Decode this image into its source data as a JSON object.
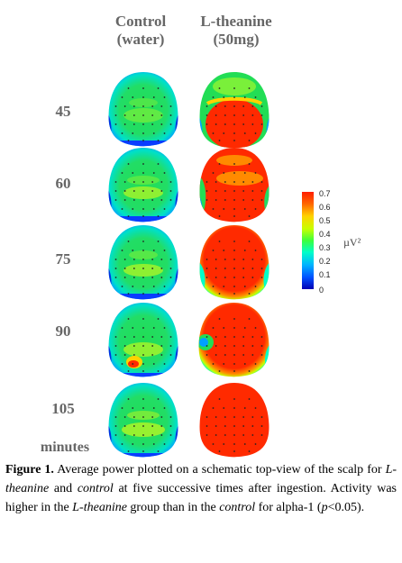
{
  "columns": [
    {
      "line1": "Control",
      "line2": "(water)"
    },
    {
      "line1": "L-theanine",
      "line2": "(50mg)"
    }
  ],
  "times": [
    "45",
    "60",
    "75",
    "90",
    "105"
  ],
  "time_unit": "minutes",
  "colorbar": {
    "ticks": [
      "0.7",
      "0.6",
      "0.5",
      "0.4",
      "0.3",
      "0.2",
      "0.1",
      "0"
    ],
    "unit": "µV²",
    "colors": [
      "#0000b4",
      "#0050ff",
      "#00b4ff",
      "#00ffc8",
      "#3cff3c",
      "#c8ff00",
      "#ffd200",
      "#ff6400",
      "#ff1e00"
    ]
  },
  "caption": {
    "label": "Figure 1.",
    "p1": "  Average power plotted on a schematic top-view of the scalp for ",
    "t1": "L-theanine",
    "p2": " and ",
    "t2": "control",
    "p3": " at five successive times after ingestion. Activity was higher in the ",
    "t3": "L-theanine",
    "p4": " group than in the ",
    "t4": "control",
    "p5": " for alpha-1 (",
    "t5": "p",
    "p6": "<0.05)."
  }
}
